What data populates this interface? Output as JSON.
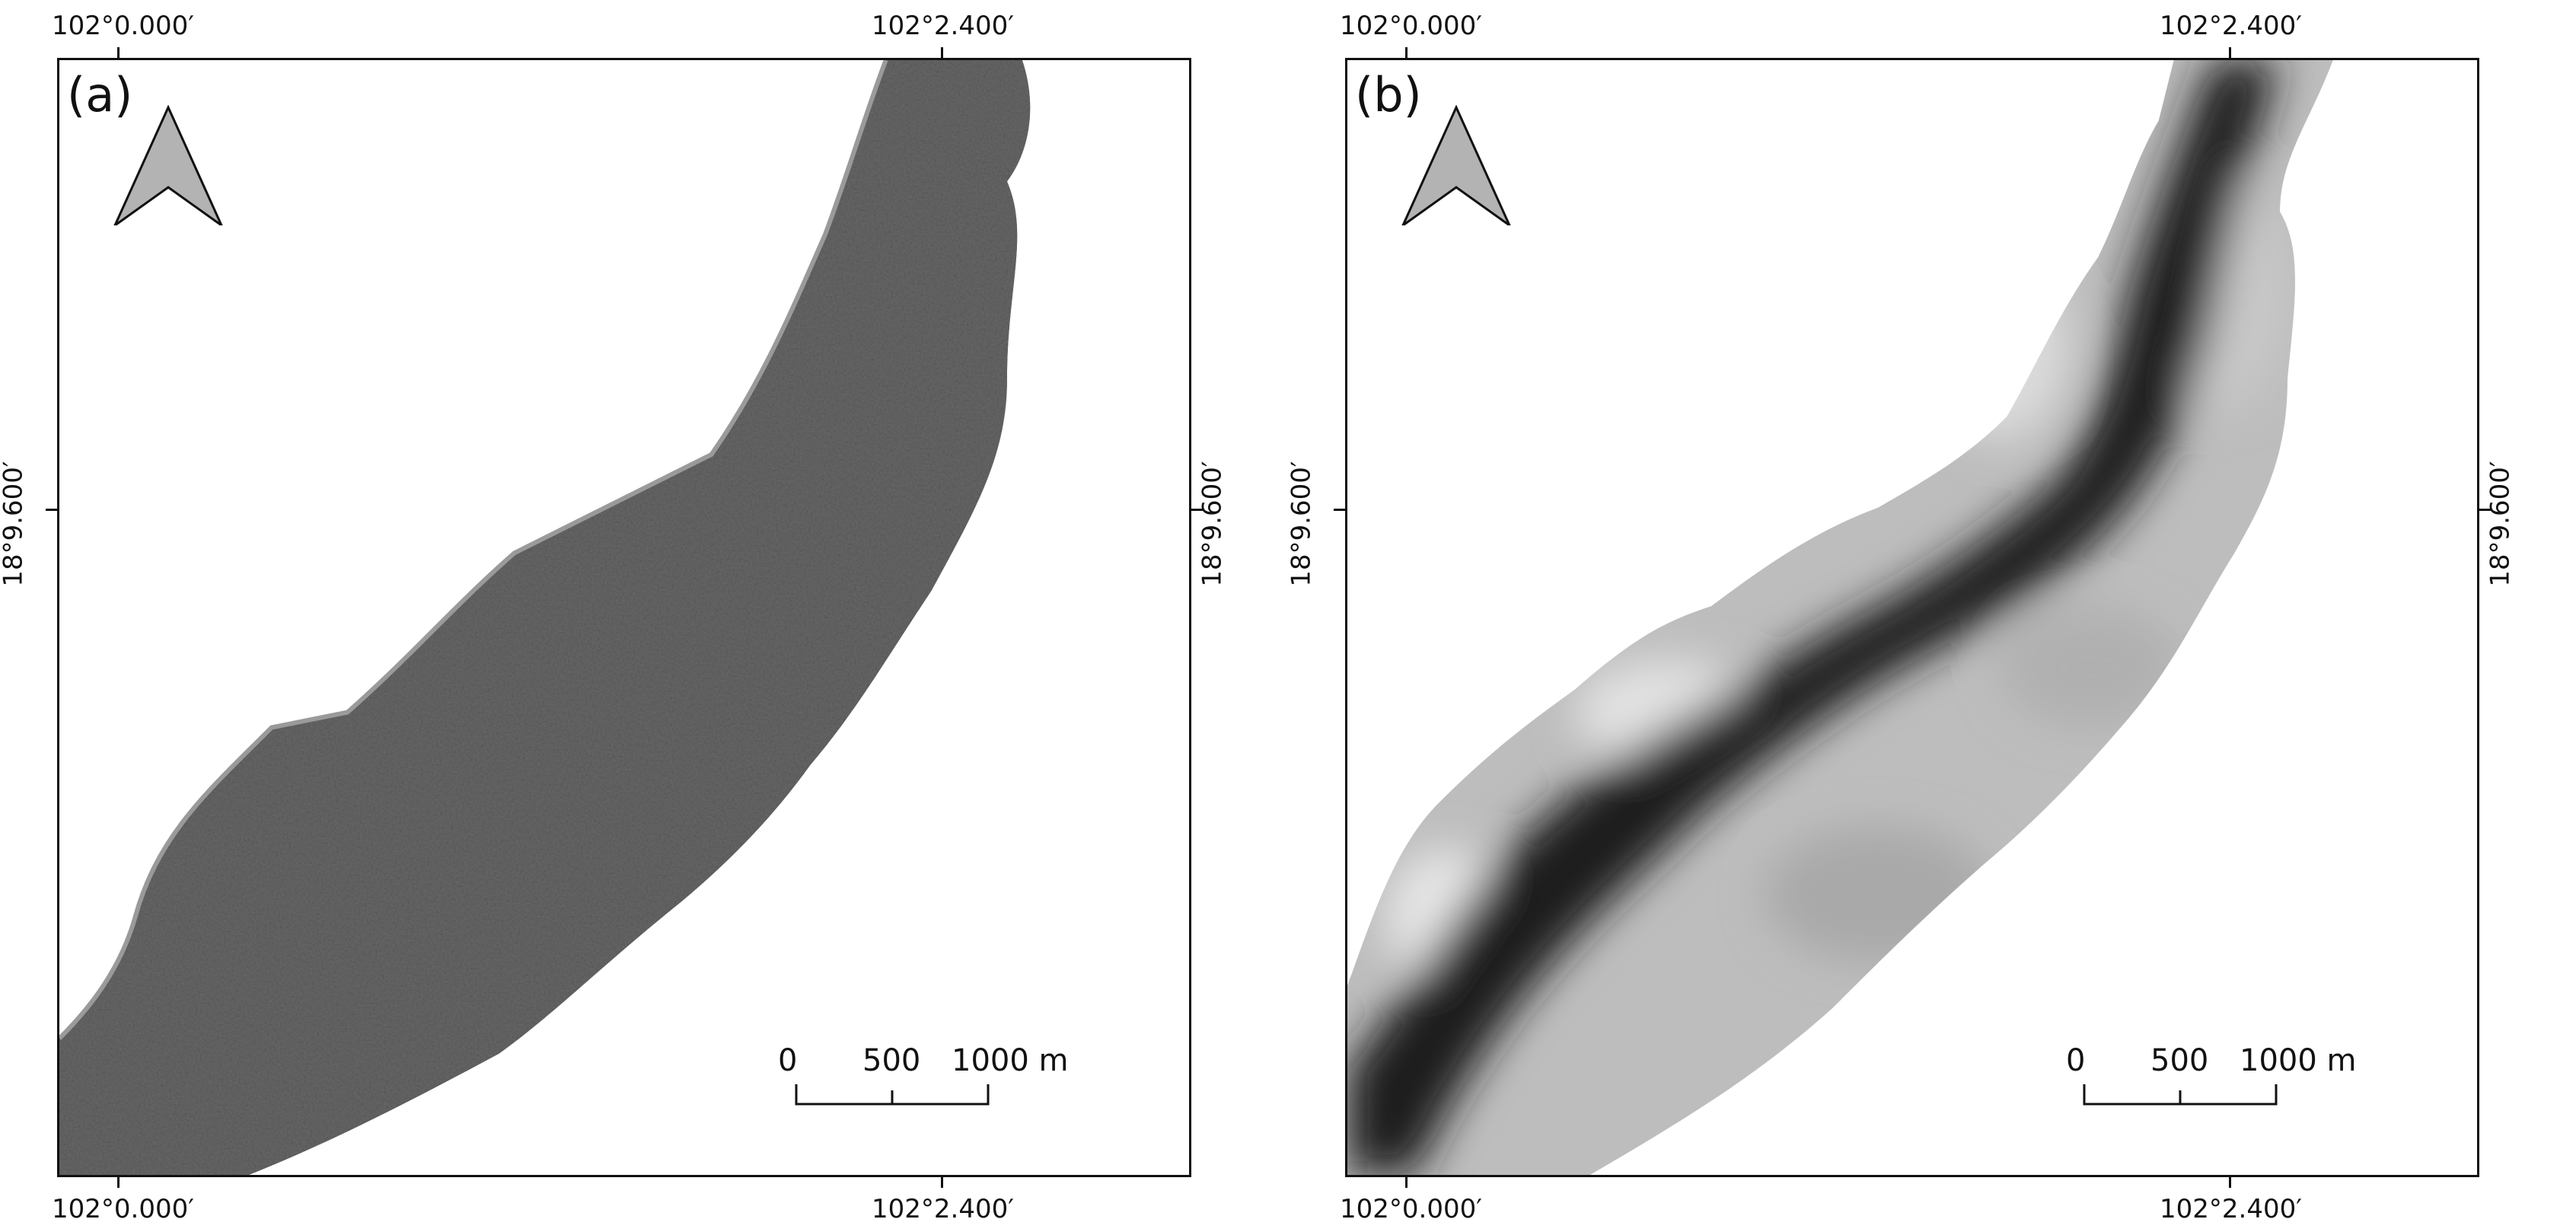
{
  "panels": [
    {
      "label": "(a)",
      "coords": {
        "lon_left": "102°0.000′",
        "lon_right": "102°2.400′",
        "lat": "18°9.600′"
      },
      "scalebar": {
        "ticks": [
          "0",
          "500",
          "1000 m"
        ]
      },
      "style": "noisy-grayscale"
    },
    {
      "label": "(b)",
      "coords": {
        "lon_left": "102°0.000′",
        "lon_right": "102°2.400′",
        "lat": "18°9.600′"
      },
      "scalebar": {
        "ticks": [
          "0",
          "500",
          "1000 m"
        ]
      },
      "style": "smooth-grayscale"
    }
  ],
  "colors": {
    "arrow_fill": "#b3b3b3",
    "frame": "#111111",
    "river_dark": "#1a1a1a"
  },
  "icons": [
    "north-arrow-icon"
  ]
}
